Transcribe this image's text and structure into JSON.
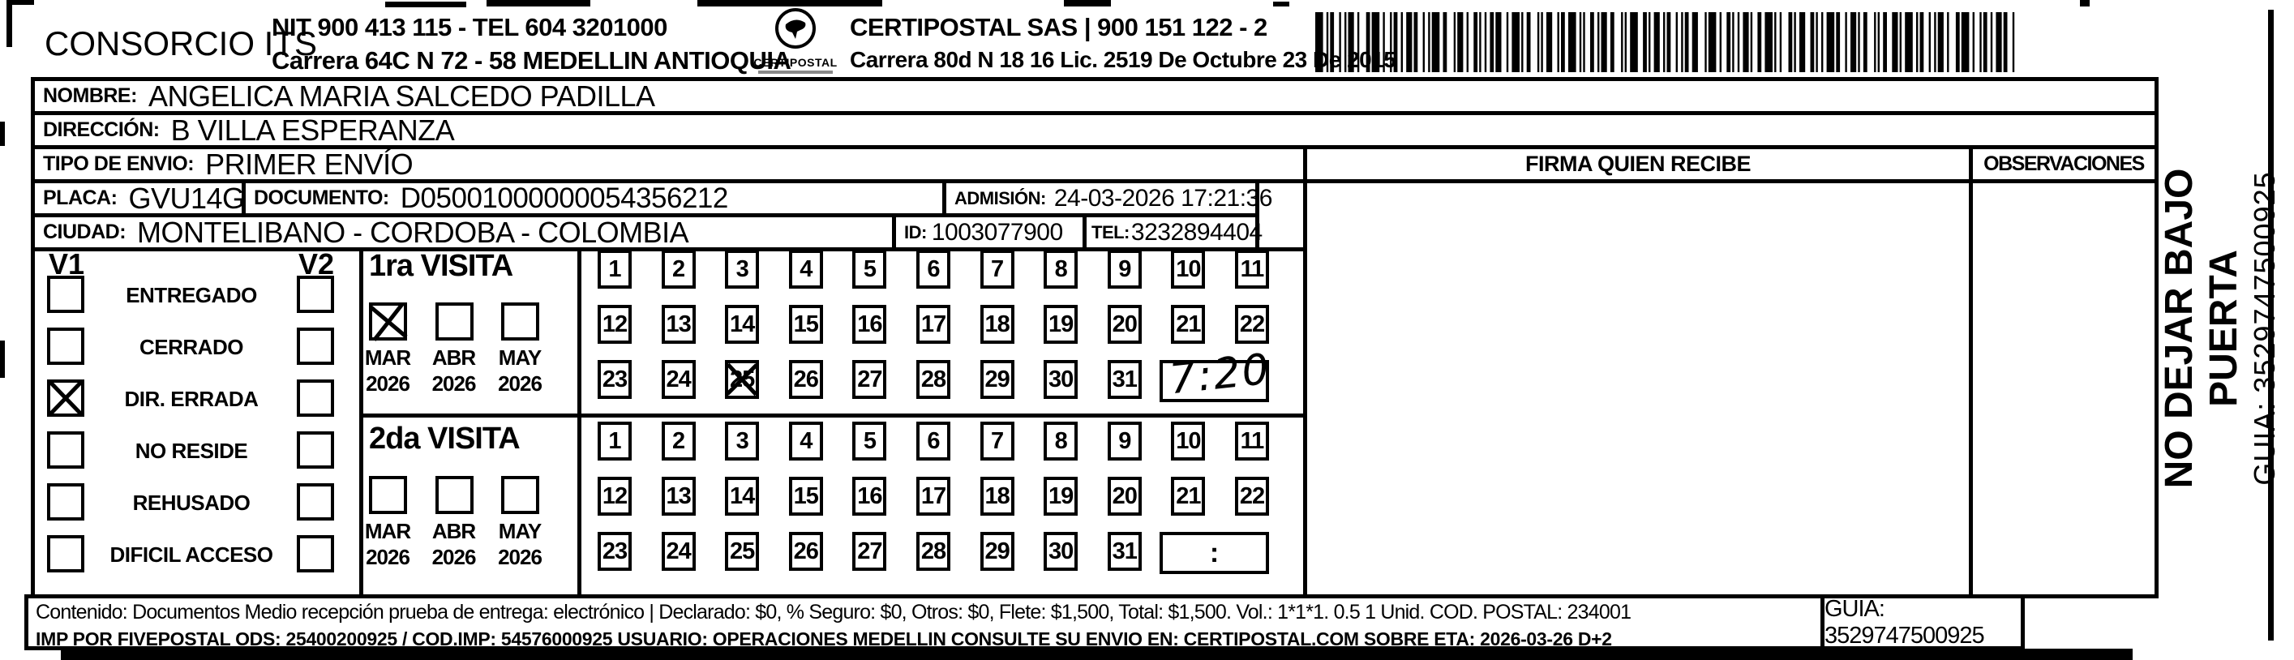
{
  "header": {
    "company_name": "CONSORCIO ITS",
    "company_nit_tel": "NIT 900 413 115 - TEL 604 3201000",
    "company_address": "Carrera 64C N 72 - 58 MEDELLIN ANTIOQUIA",
    "logo_text": "CERTIPOSTAL",
    "logo_icon": "certipostal-seal-icon",
    "barcode_icon": "barcode-icon",
    "operator_name_reg": "CERTIPOSTAL SAS | 900 151 122 - 2",
    "operator_address_lic": "Carrera 80d N 18 16  Lic. 2519 De Octubre 23 De 2015"
  },
  "shipment": {
    "nombre": {
      "label": "NOMBRE:",
      "value": "ANGELICA MARIA SALCEDO PADILLA"
    },
    "direccion": {
      "label": "DIRECCIÓN:",
      "value": "B VILLA ESPERANZA"
    },
    "tipo_envio": {
      "label": "TIPO DE ENVIO:",
      "value": "PRIMER ENVÍO"
    },
    "placa": {
      "label": "PLACA:",
      "value": "GVU14G"
    },
    "documento": {
      "label": "DOCUMENTO:",
      "value": "D05001000000054356212"
    },
    "admision": {
      "label": "ADMISIÓN:",
      "value": "24-03-2026 17:21:36"
    },
    "ciudad": {
      "label": "CIUDAD:",
      "value": "MONTELIBANO - CORDOBA - COLOMBIA"
    },
    "id": {
      "label": "ID:",
      "value": "1003077900"
    },
    "tel": {
      "label": "TEL:",
      "value": "3232894404"
    }
  },
  "delivery_status": {
    "column1_header": "V1",
    "column2_header": "V2",
    "rows": [
      {
        "label": "ENTREGADO",
        "v1_checked": false,
        "v2_checked": false
      },
      {
        "label": "CERRADO",
        "v1_checked": false,
        "v2_checked": false
      },
      {
        "label": "DIR. ERRADA",
        "v1_checked": true,
        "v2_checked": false
      },
      {
        "label": "NO RESIDE",
        "v1_checked": false,
        "v2_checked": false
      },
      {
        "label": "REHUSADO",
        "v1_checked": false,
        "v2_checked": false
      },
      {
        "label": "DIFICIL ACCESO",
        "v1_checked": false,
        "v2_checked": false
      }
    ]
  },
  "visits": [
    {
      "title": "1ra VISITA",
      "months": [
        {
          "month": "MAR",
          "year": "2026",
          "checked": true
        },
        {
          "month": "ABR",
          "year": "2026",
          "checked": false
        },
        {
          "month": "MAY",
          "year": "2026",
          "checked": false
        }
      ],
      "day_rows": [
        [
          1,
          2,
          3,
          4,
          5,
          6,
          7,
          8,
          9,
          10,
          11
        ],
        [
          12,
          13,
          14,
          15,
          16,
          17,
          18,
          19,
          20,
          21,
          22
        ],
        [
          23,
          24,
          25,
          26,
          27,
          28,
          29,
          30,
          31
        ]
      ],
      "crossed_day": 25,
      "time_note": "7:20",
      "time_note_handwritten": true
    },
    {
      "title": "2da VISITA",
      "months": [
        {
          "month": "MAR",
          "year": "2026",
          "checked": false
        },
        {
          "month": "ABR",
          "year": "2026",
          "checked": false
        },
        {
          "month": "MAY",
          "year": "2026",
          "checked": false
        }
      ],
      "day_rows": [
        [
          1,
          2,
          3,
          4,
          5,
          6,
          7,
          8,
          9,
          10,
          11
        ],
        [
          12,
          13,
          14,
          15,
          16,
          17,
          18,
          19,
          20,
          21,
          22
        ],
        [
          23,
          24,
          25,
          26,
          27,
          28,
          29,
          30,
          31
        ]
      ],
      "crossed_day": null,
      "time_note": ":",
      "time_note_handwritten": false
    }
  ],
  "signature_area": {
    "firma_header": "FIRMA QUIEN RECIBE",
    "observaciones_header": "OBSERVACIONES"
  },
  "side_banner": {
    "warning": "NO DEJAR BAJO PUERTA",
    "guia": "GUIA: 3529747500925"
  },
  "footer": {
    "content_line": "Contenido: Documentos Medio recepción prueba de entrega: electrónico | Declarado: $0, % Seguro: $0, Otros: $0, Flete: $1,500, Total: $1,500. Vol.: 1*1*1. 0.5  1 Unid. COD. POSTAL: 234001",
    "imp_line": "IMP POR FIVEPOSTAL ODS: 25400200925 / COD.IMP: 54576000925 USUARIO: OPERACIONES MEDELLIN CONSULTE SU ENVIO EN: CERTIPOSTAL.COM SOBRE ETA: 2026-03-26 D+2",
    "guia_box": "GUIA: 3529747500925"
  },
  "colors": {
    "ink": "#000000",
    "paper": "#ffffff"
  }
}
